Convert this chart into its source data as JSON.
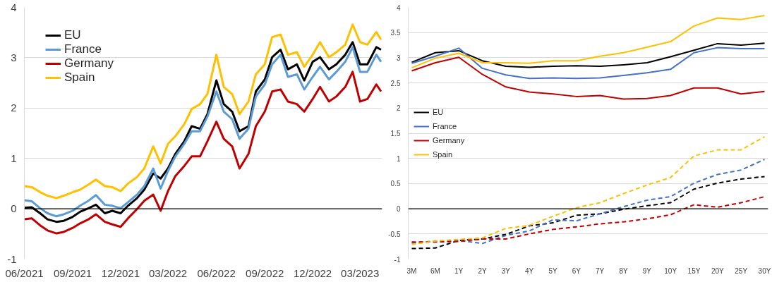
{
  "chart_data": [
    {
      "type": "line",
      "x": [
        "2021-06-01",
        "2021-06-15",
        "2021-07-01",
        "2021-07-15",
        "2021-08-01",
        "2021-08-15",
        "2021-09-01",
        "2021-09-15",
        "2021-10-01",
        "2021-10-15",
        "2021-11-01",
        "2021-11-15",
        "2021-12-01",
        "2021-12-15",
        "2022-01-01",
        "2022-01-15",
        "2022-02-01",
        "2022-02-15",
        "2022-03-01",
        "2022-03-15",
        "2022-04-01",
        "2022-04-15",
        "2022-05-01",
        "2022-05-15",
        "2022-06-01",
        "2022-06-15",
        "2022-07-01",
        "2022-07-15",
        "2022-08-01",
        "2022-08-15",
        "2022-09-01",
        "2022-09-15",
        "2022-10-01",
        "2022-10-15",
        "2022-11-01",
        "2022-11-15",
        "2022-12-01",
        "2022-12-15",
        "2023-01-01",
        "2023-01-15",
        "2023-02-01",
        "2023-02-15",
        "2023-03-01",
        "2023-03-15",
        "2023-04-01",
        "2023-04-10"
      ],
      "xlim": [
        "2021-06-01",
        "2023-04-12"
      ],
      "xticks": [
        {
          "value": "2021-06-01",
          "label": "06/2021"
        },
        {
          "value": "2021-09-01",
          "label": "09/2021"
        },
        {
          "value": "2021-12-01",
          "label": "12/2021"
        },
        {
          "value": "2022-03-01",
          "label": "03/2022"
        },
        {
          "value": "2022-06-01",
          "label": "06/2022"
        },
        {
          "value": "2022-09-01",
          "label": "09/2022"
        },
        {
          "value": "2022-12-01",
          "label": "12/2022"
        },
        {
          "value": "2023-03-01",
          "label": "03/2023"
        }
      ],
      "ylim": [
        -1,
        4
      ],
      "yticks": [
        -1,
        0,
        1,
        2,
        3,
        4
      ],
      "grid": "y",
      "legend": "top left",
      "ref_lines": [
        {
          "axis": "y",
          "value": 0,
          "color": "#000000"
        }
      ],
      "series": [
        {
          "name": "EU",
          "color": "#000000",
          "values": [
            0.02,
            0.03,
            -0.09,
            -0.21,
            -0.26,
            -0.24,
            -0.16,
            -0.06,
            0.01,
            0.08,
            -0.09,
            -0.04,
            -0.09,
            0.06,
            0.21,
            0.38,
            0.7,
            0.6,
            0.8,
            1.09,
            1.34,
            1.64,
            1.59,
            1.88,
            2.55,
            2.08,
            1.93,
            1.54,
            1.64,
            2.33,
            2.57,
            3.01,
            3.16,
            2.77,
            2.87,
            2.55,
            2.92,
            3.01,
            2.77,
            2.87,
            3.06,
            3.31,
            2.87,
            2.87,
            3.21,
            3.16
          ]
        },
        {
          "name": "France",
          "color": "#5b9bd5",
          "values": [
            0.17,
            0.15,
            0.01,
            -0.09,
            -0.15,
            -0.11,
            -0.04,
            0.06,
            0.16,
            0.27,
            0.08,
            0.06,
            0.01,
            0.13,
            0.28,
            0.45,
            0.8,
            0.4,
            0.75,
            1.04,
            1.29,
            1.54,
            1.54,
            1.83,
            2.33,
            1.93,
            1.78,
            1.39,
            1.59,
            2.23,
            2.47,
            2.87,
            3.06,
            2.62,
            2.67,
            2.37,
            2.62,
            2.82,
            2.57,
            2.72,
            2.92,
            3.21,
            2.72,
            2.72,
            3.06,
            2.92
          ]
        },
        {
          "name": "Germany",
          "color": "#c00000",
          "values": [
            -0.21,
            -0.19,
            -0.33,
            -0.43,
            -0.49,
            -0.46,
            -0.38,
            -0.29,
            -0.21,
            -0.11,
            -0.26,
            -0.31,
            -0.36,
            -0.19,
            -0.01,
            0.16,
            0.28,
            -0.04,
            0.35,
            0.65,
            0.85,
            1.04,
            1.04,
            1.34,
            1.73,
            1.39,
            1.24,
            0.8,
            1.09,
            1.64,
            1.93,
            2.33,
            2.37,
            2.13,
            2.08,
            1.93,
            2.18,
            2.42,
            2.13,
            2.23,
            2.42,
            2.72,
            2.13,
            2.18,
            2.47,
            2.33
          ]
        },
        {
          "name": "Spain",
          "color": "#ffc000",
          "values": [
            0.45,
            0.43,
            0.33,
            0.26,
            0.21,
            0.26,
            0.33,
            0.38,
            0.48,
            0.58,
            0.45,
            0.43,
            0.35,
            0.5,
            0.63,
            0.8,
            1.24,
            0.9,
            1.29,
            1.44,
            1.68,
            1.98,
            2.08,
            2.28,
            3.06,
            2.42,
            2.28,
            1.88,
            2.13,
            2.67,
            2.87,
            3.41,
            3.46,
            3.06,
            3.11,
            2.82,
            3.06,
            3.31,
            3.01,
            3.11,
            3.26,
            3.66,
            3.31,
            3.26,
            3.51,
            3.36
          ]
        }
      ]
    },
    {
      "type": "line",
      "categories": [
        "3M",
        "6M",
        "1Y",
        "2Y",
        "3Y",
        "4Y",
        "5Y",
        "6Y",
        "7Y",
        "8Y",
        "9Y",
        "10Y",
        "15Y",
        "20Y",
        "25Y",
        "30Y"
      ],
      "ylim": [
        -1,
        4
      ],
      "yticks": [
        -1,
        -0.5,
        0,
        0.5,
        1,
        1.5,
        2,
        2.5,
        3,
        3.5,
        4
      ],
      "grid": "y",
      "legend": "left",
      "ref_lines": [
        {
          "axis": "y",
          "value": 0,
          "color": "#000000"
        }
      ],
      "series": [
        {
          "name": "EU",
          "color": "#000000",
          "line_style": "solid",
          "values": [
            2.91,
            3.1,
            3.14,
            2.94,
            2.83,
            2.81,
            2.83,
            2.84,
            2.83,
            2.86,
            2.9,
            3.02,
            3.15,
            3.28,
            3.25,
            3.29
          ]
        },
        {
          "name": "France",
          "color": "#4472c4",
          "line_style": "solid",
          "values": [
            2.89,
            3.03,
            3.19,
            2.79,
            2.66,
            2.59,
            2.6,
            2.59,
            2.6,
            2.65,
            2.7,
            2.77,
            3.1,
            3.2,
            3.18,
            3.18
          ]
        },
        {
          "name": "Germany",
          "color": "#c00000",
          "line_style": "solid",
          "values": [
            2.74,
            2.9,
            3.01,
            2.67,
            2.42,
            2.32,
            2.28,
            2.23,
            2.25,
            2.18,
            2.19,
            2.25,
            2.4,
            2.4,
            2.28,
            2.33
          ]
        },
        {
          "name": "Spain",
          "color": "#ffc000",
          "line_style": "solid",
          "values": [
            2.8,
            2.99,
            3.09,
            2.9,
            2.9,
            2.89,
            2.94,
            2.94,
            3.03,
            3.1,
            3.21,
            3.32,
            3.63,
            3.79,
            3.76,
            3.84
          ]
        },
        {
          "color": "#000000",
          "line_style": "dashed",
          "values": [
            -0.79,
            -0.78,
            -0.63,
            -0.6,
            -0.51,
            -0.34,
            -0.28,
            -0.13,
            -0.1,
            -0.01,
            0.06,
            0.12,
            0.39,
            0.51,
            0.59,
            0.64
          ]
        },
        {
          "color": "#4472c4",
          "line_style": "dashed",
          "values": [
            -0.68,
            -0.64,
            -0.63,
            -0.69,
            -0.53,
            -0.44,
            -0.22,
            -0.24,
            -0.1,
            0.04,
            0.17,
            0.24,
            0.51,
            0.68,
            0.77,
            0.98
          ]
        },
        {
          "color": "#c00000",
          "line_style": "dashed",
          "values": [
            -0.66,
            -0.66,
            -0.65,
            -0.6,
            -0.6,
            -0.5,
            -0.41,
            -0.36,
            -0.3,
            -0.26,
            -0.2,
            -0.12,
            0.08,
            0.03,
            0.12,
            0.24
          ]
        },
        {
          "color": "#ffc000",
          "line_style": "dashed",
          "values": [
            -0.71,
            -0.64,
            -0.61,
            -0.58,
            -0.39,
            -0.33,
            -0.15,
            0.02,
            0.12,
            0.3,
            0.47,
            0.62,
            1.05,
            1.17,
            1.17,
            1.43
          ]
        }
      ]
    }
  ]
}
